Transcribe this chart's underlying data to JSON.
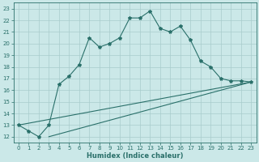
{
  "xlabel": "Humidex (Indice chaleur)",
  "bg_color": "#cbe8e8",
  "grid_color": "#a8cccc",
  "line_color": "#2a706a",
  "xlim": [
    -0.5,
    23.5
  ],
  "ylim": [
    11.5,
    23.5
  ],
  "xticks": [
    0,
    1,
    2,
    3,
    4,
    5,
    6,
    7,
    8,
    9,
    10,
    11,
    12,
    13,
    14,
    15,
    16,
    17,
    18,
    19,
    20,
    21,
    22,
    23
  ],
  "yticks": [
    12,
    13,
    14,
    15,
    16,
    17,
    18,
    19,
    20,
    21,
    22,
    23
  ],
  "line1_x": [
    0,
    1,
    2,
    3,
    4,
    5,
    6,
    7,
    8,
    9,
    10,
    11,
    12,
    13,
    14,
    15,
    16,
    17,
    18,
    19,
    20,
    21,
    22,
    23
  ],
  "line1_y": [
    13.0,
    12.5,
    12.0,
    13.0,
    16.5,
    17.2,
    18.2,
    20.5,
    19.7,
    20.0,
    20.5,
    22.2,
    22.2,
    22.8,
    21.3,
    21.0,
    21.5,
    20.3,
    18.5,
    18.0,
    17.0,
    16.8,
    16.8,
    16.7
  ],
  "line2_x": [
    0,
    23
  ],
  "line2_y": [
    13.0,
    16.7
  ],
  "line3_x": [
    3,
    23
  ],
  "line3_y": [
    12.0,
    16.7
  ]
}
